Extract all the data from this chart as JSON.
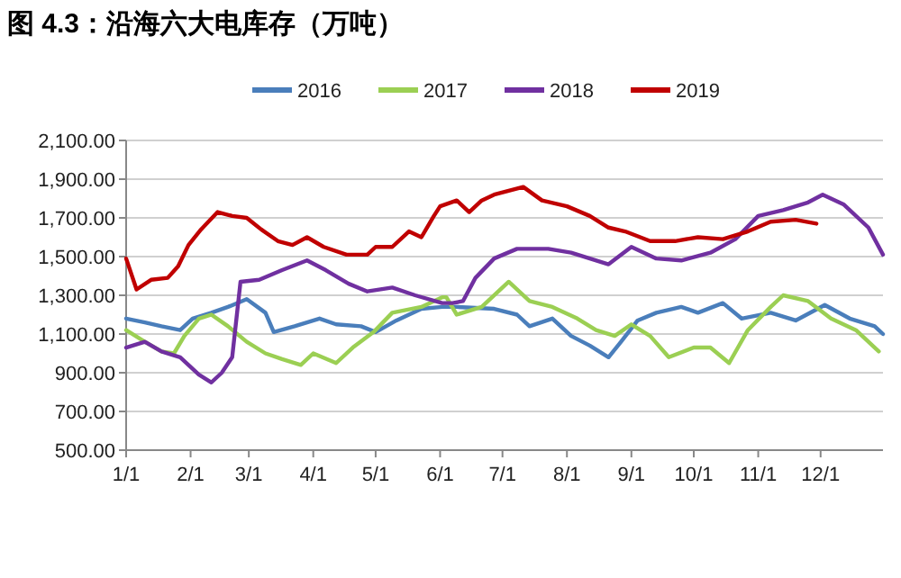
{
  "chart_data": {
    "type": "line",
    "title": "图 4.3：沿海六大电库存（万吨）",
    "xlim": [
      "--01-01",
      "--12-31"
    ],
    "xticks": [
      {
        "value": "--01-01",
        "label": "1/1"
      },
      {
        "value": "--02-01",
        "label": "2/1"
      },
      {
        "value": "--03-01",
        "label": "3/1"
      },
      {
        "value": "--04-01",
        "label": "4/1"
      },
      {
        "value": "--05-01",
        "label": "5/1"
      },
      {
        "value": "--06-01",
        "label": "6/1"
      },
      {
        "value": "--07-01",
        "label": "7/1"
      },
      {
        "value": "--08-01",
        "label": "8/1"
      },
      {
        "value": "--09-01",
        "label": "9/1"
      },
      {
        "value": "--10-01",
        "label": "10/1"
      },
      {
        "value": "--11-01",
        "label": "11/1"
      },
      {
        "value": "--12-01",
        "label": "12/1"
      }
    ],
    "ylim": [
      500,
      2100
    ],
    "yticks": [
      {
        "value": 500,
        "label": "500.00"
      },
      {
        "value": 700,
        "label": "700.00"
      },
      {
        "value": 900,
        "label": "900.00"
      },
      {
        "value": 1100,
        "label": "1,100.00"
      },
      {
        "value": 1300,
        "label": "1,300.00"
      },
      {
        "value": 1500,
        "label": "1,500.00"
      },
      {
        "value": 1700,
        "label": "1,700.00"
      },
      {
        "value": 1900,
        "label": "1,900.00"
      },
      {
        "value": 2100,
        "label": "2,100.00"
      }
    ],
    "grid": "y",
    "legend": "top",
    "marker": "none",
    "line_style": "solid",
    "series": [
      {
        "name": "2016",
        "color": "#4a7ebb",
        "x": [
          "--01-01",
          "--01-10",
          "--01-18",
          "--01-27",
          "--02-02",
          "--02-11",
          "--02-19",
          "--02-28",
          "--03-09",
          "--03-13",
          "--03-23",
          "--04-04",
          "--04-12",
          "--04-24",
          "--05-01",
          "--05-11",
          "--05-23",
          "--06-02",
          "--06-09",
          "--06-27",
          "--07-08",
          "--07-14",
          "--07-25",
          "--08-03",
          "--08-12",
          "--08-21",
          "--08-27",
          "--09-04",
          "--09-13",
          "--09-25",
          "--10-03",
          "--10-15",
          "--10-24",
          "--11-07",
          "--11-19",
          "--12-03",
          "--12-15",
          "--12-27",
          "--12-31"
        ],
        "values": [
          1180,
          1160,
          1140,
          1120,
          1180,
          1210,
          1240,
          1280,
          1210,
          1110,
          1140,
          1180,
          1150,
          1140,
          1110,
          1170,
          1230,
          1240,
          1240,
          1230,
          1200,
          1140,
          1180,
          1090,
          1040,
          980,
          1060,
          1170,
          1210,
          1240,
          1210,
          1260,
          1180,
          1210,
          1170,
          1250,
          1180,
          1140,
          1100
        ]
      },
      {
        "name": "2017",
        "color": "#9bcf53",
        "x": [
          "--01-01",
          "--01-10",
          "--01-18",
          "--01-24",
          "--01-29",
          "--02-05",
          "--02-11",
          "--02-19",
          "--02-28",
          "--03-09",
          "--03-17",
          "--03-26",
          "--04-01",
          "--04-12",
          "--04-20",
          "--04-30",
          "--05-09",
          "--05-23",
          "--06-02",
          "--06-04",
          "--06-09",
          "--06-21",
          "--07-04",
          "--07-14",
          "--07-25",
          "--08-06",
          "--08-15",
          "--08-24",
          "--09-01",
          "--09-10",
          "--09-19",
          "--10-01",
          "--10-09",
          "--10-18",
          "--10-27",
          "--11-07",
          "--11-13",
          "--11-25",
          "--12-06",
          "--12-18",
          "--12-29"
        ],
        "values": [
          1120,
          1060,
          1010,
          1000,
          1090,
          1180,
          1200,
          1140,
          1060,
          1000,
          970,
          940,
          1000,
          950,
          1030,
          1110,
          1210,
          1240,
          1290,
          1290,
          1200,
          1240,
          1370,
          1270,
          1240,
          1180,
          1120,
          1090,
          1150,
          1090,
          980,
          1030,
          1030,
          950,
          1120,
          1240,
          1300,
          1270,
          1180,
          1120,
          1010
        ]
      },
      {
        "name": "2018",
        "color": "#7030a0",
        "x": [
          "--01-01",
          "--01-10",
          "--01-18",
          "--01-27",
          "--02-05",
          "--02-11",
          "--02-16",
          "--02-21",
          "--02-25",
          "--03-06",
          "--03-17",
          "--03-29",
          "--04-07",
          "--04-18",
          "--04-27",
          "--05-09",
          "--05-20",
          "--06-02",
          "--06-07",
          "--06-12",
          "--06-18",
          "--06-27",
          "--07-08",
          "--07-23",
          "--08-03",
          "--08-21",
          "--09-01",
          "--09-13",
          "--09-25",
          "--10-09",
          "--10-21",
          "--11-01",
          "--11-13",
          "--11-25",
          "--12-02",
          "--12-12",
          "--12-24",
          "--12-31"
        ],
        "values": [
          1030,
          1060,
          1010,
          980,
          890,
          850,
          900,
          980,
          1370,
          1380,
          1430,
          1480,
          1430,
          1360,
          1320,
          1340,
          1300,
          1260,
          1260,
          1270,
          1390,
          1490,
          1540,
          1540,
          1520,
          1460,
          1550,
          1490,
          1480,
          1520,
          1590,
          1710,
          1740,
          1780,
          1820,
          1770,
          1650,
          1510
        ]
      },
      {
        "name": "2019",
        "color": "#c00000",
        "x": [
          "--01-01",
          "--01-06",
          "--01-13",
          "--01-21",
          "--01-26",
          "--01-31",
          "--02-06",
          "--02-14",
          "--02-21",
          "--02-28",
          "--03-07",
          "--03-15",
          "--03-22",
          "--03-29",
          "--04-06",
          "--04-17",
          "--04-27",
          "--05-01",
          "--05-09",
          "--05-17",
          "--05-23",
          "--05-29",
          "--06-01",
          "--06-09",
          "--06-15",
          "--06-21",
          "--06-27",
          "--07-11",
          "--07-20",
          "--08-01",
          "--08-12",
          "--08-21",
          "--08-29",
          "--09-10",
          "--09-22",
          "--10-03",
          "--10-15",
          "--10-27",
          "--11-07",
          "--11-19",
          "--11-29"
        ],
        "values": [
          1490,
          1330,
          1380,
          1390,
          1450,
          1560,
          1640,
          1730,
          1710,
          1700,
          1640,
          1580,
          1560,
          1600,
          1550,
          1510,
          1510,
          1550,
          1550,
          1630,
          1600,
          1710,
          1760,
          1790,
          1730,
          1790,
          1820,
          1860,
          1790,
          1760,
          1710,
          1650,
          1630,
          1580,
          1580,
          1600,
          1590,
          1630,
          1680,
          1690,
          1670
        ]
      }
    ]
  }
}
